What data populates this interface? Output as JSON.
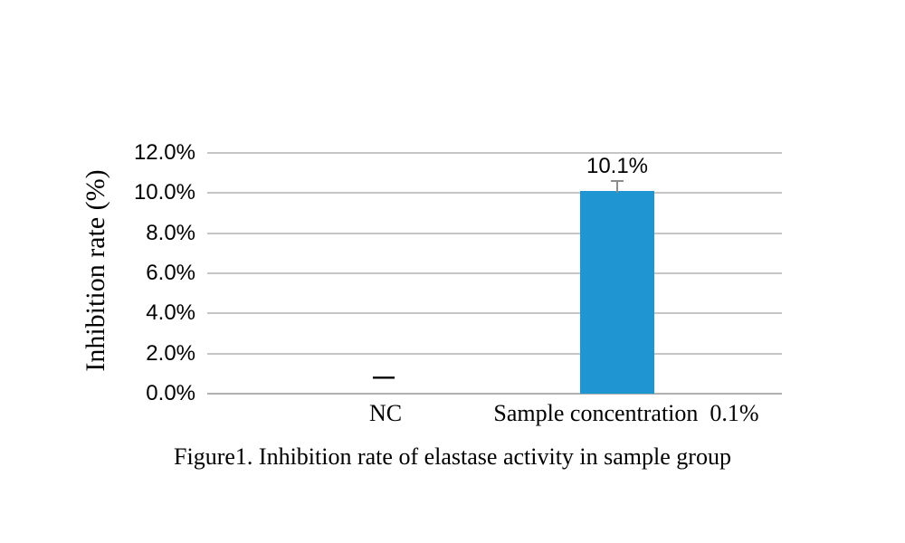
{
  "figure": {
    "caption": "Figure1. Inhibition rate of elastase activity in sample group"
  },
  "chart_data": {
    "type": "bar",
    "title": "",
    "xlabel": "",
    "ylabel": "Inhibition rate (%)",
    "categories": [
      "NC",
      "Sample concentration  0.1%"
    ],
    "values": [
      0,
      10.1
    ],
    "bar_labels": [
      "—",
      "10.1%"
    ],
    "error_plus": [
      0,
      0.5
    ],
    "ylim": [
      0,
      12
    ],
    "yticks": [
      0,
      2,
      4,
      6,
      8,
      10,
      12
    ],
    "ytick_labels": [
      "0.0%",
      "2.0%",
      "4.0%",
      "6.0%",
      "8.0%",
      "10.0%",
      "12.0%"
    ],
    "grid": true,
    "legend": false,
    "bar_color": "#1f95d2",
    "gridline_color": "#c5c5c5",
    "axis_line_color": "#b0b0b0",
    "error_bar_color": "#8c8c8c",
    "text_color": "#000000"
  }
}
